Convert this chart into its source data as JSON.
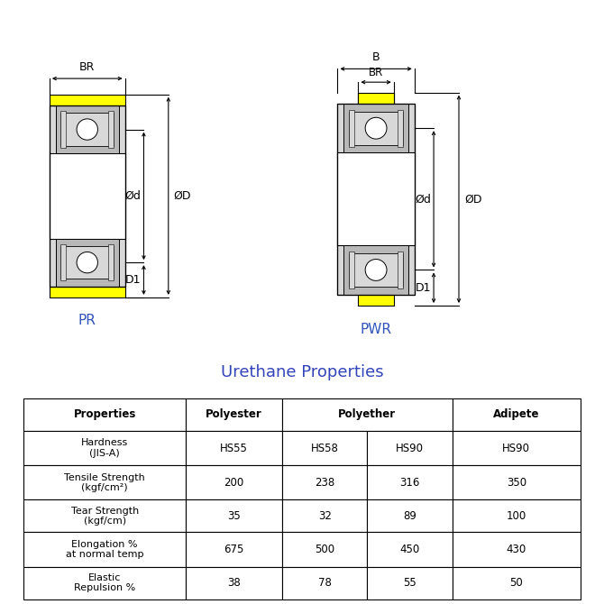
{
  "bg_color": "#ffffff",
  "title_color": "#3344bb",
  "yellow_color": "#ffff00",
  "gray_color": "#b8b8b8",
  "light_gray": "#d8d8d8",
  "blue_label_color": "#3355bb",
  "black": "#000000",
  "white": "#ffffff",
  "table_title": "Urethane Properties",
  "table_headers": [
    "Properties",
    "Polyester",
    "Polyether",
    "Adipete"
  ],
  "table_rows": [
    [
      "Hardness\n(JIS-A)",
      "HS55",
      "HS58",
      "HS90",
      "HS90"
    ],
    [
      "Tensile Strength\n(kgf/cm²)",
      "200",
      "238",
      "316",
      "350"
    ],
    [
      "Tear Strength\n(kgf/cm)",
      "35",
      "32",
      "89",
      "100"
    ],
    [
      "Elongation %\nat normal temp",
      "675",
      "500",
      "450",
      "430"
    ],
    [
      "Elastic\nRepulsion %",
      "38",
      "78",
      "55",
      "50"
    ]
  ],
  "pr_label": "PR",
  "pwr_label": "PWR"
}
